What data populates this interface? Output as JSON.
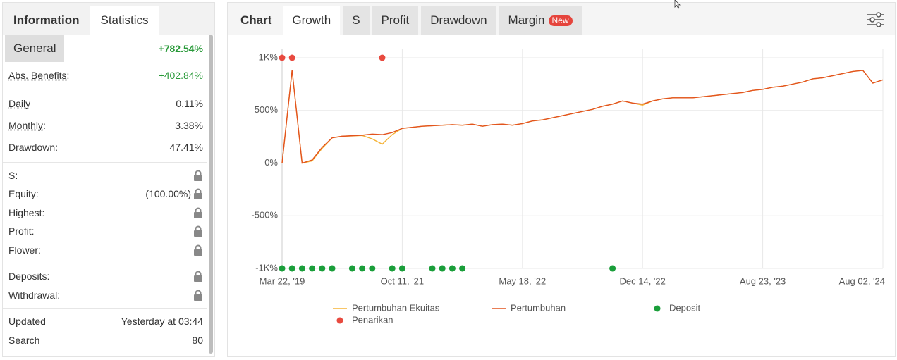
{
  "stats_panel": {
    "tabs": [
      "Information",
      "Statistics"
    ],
    "general": {
      "label": "General",
      "value": "+782.54%"
    },
    "sections": [
      [
        {
          "label": "Abs. Benefits:",
          "value": "+402.84%",
          "underline": true,
          "positive": true
        }
      ],
      [
        {
          "label": "Daily",
          "value": "0.11%",
          "underline": true
        },
        {
          "label": "Monthly:",
          "value": "3.38%",
          "underline": true
        },
        {
          "label": "Drawdown:",
          "value": "47.41%"
        }
      ],
      [
        {
          "label": "S:",
          "locked": true
        },
        {
          "label": "Equity:",
          "value": "(100.00%)",
          "locked": true
        },
        {
          "label": "Highest:",
          "locked": true
        },
        {
          "label": "Profit:",
          "locked": true
        },
        {
          "label": "Flower:",
          "locked": true
        }
      ],
      [
        {
          "label": "Deposits:",
          "locked": true
        },
        {
          "label": "Withdrawal:",
          "locked": true
        }
      ],
      [
        {
          "label": "Updated",
          "value": "Yesterday at 03:44"
        },
        {
          "label": "Search",
          "value": "80"
        }
      ]
    ]
  },
  "chart_panel": {
    "tabs": [
      "Chart",
      "Growth",
      "S",
      "Profit",
      "Drawdown",
      "Margin"
    ],
    "badge": "New",
    "chart_data": {
      "type": "line",
      "categories": [
        "Mar 22, '19",
        null,
        null,
        null,
        null,
        null,
        null,
        null,
        null,
        null,
        null,
        null,
        "Oct 11, '21",
        null,
        null,
        null,
        null,
        null,
        null,
        null,
        null,
        null,
        null,
        null,
        "May 18, '22",
        null,
        null,
        null,
        null,
        null,
        null,
        null,
        null,
        null,
        null,
        null,
        "Dec 14, '22",
        null,
        null,
        null,
        null,
        null,
        null,
        null,
        null,
        null,
        null,
        null,
        "Aug 23, '23",
        null,
        null,
        null,
        null,
        null,
        null,
        null,
        null,
        null,
        null,
        null,
        "Aug 02, '24"
      ],
      "ylim": [
        -1000,
        1000
      ],
      "yticks": [
        {
          "value": 1000,
          "label": "1K%"
        },
        {
          "value": 500,
          "label": "500%"
        },
        {
          "value": 0,
          "label": "0%"
        },
        {
          "value": -500,
          "label": "-500%"
        },
        {
          "value": -1000,
          "label": "-1K%"
        }
      ],
      "grid": true,
      "series": [
        {
          "name": "Pertumbuhan Ekuitas",
          "color": "#f5b335",
          "style": "line",
          "values": [
            0,
            880,
            0,
            20,
            140,
            240,
            255,
            258,
            262,
            230,
            180,
            270,
            330,
            340,
            350,
            355,
            360,
            365,
            360,
            370,
            350,
            365,
            370,
            360,
            375,
            400,
            410,
            430,
            450,
            470,
            490,
            510,
            540,
            560,
            590,
            570,
            550,
            590,
            610,
            620,
            620,
            620,
            630,
            640,
            650,
            660,
            670,
            690,
            700,
            720,
            730,
            750,
            770,
            800,
            810,
            830,
            850,
            870,
            880,
            760,
            790
          ]
        },
        {
          "name": "Pertumbuhan",
          "color": "#e2531f",
          "style": "line",
          "values": [
            0,
            880,
            0,
            30,
            150,
            240,
            255,
            260,
            265,
            275,
            270,
            290,
            330,
            340,
            350,
            355,
            360,
            365,
            360,
            370,
            350,
            365,
            370,
            360,
            375,
            400,
            410,
            430,
            450,
            470,
            490,
            510,
            540,
            560,
            590,
            570,
            560,
            590,
            610,
            620,
            620,
            620,
            630,
            640,
            650,
            660,
            670,
            690,
            700,
            720,
            730,
            750,
            770,
            800,
            810,
            830,
            850,
            870,
            880,
            760,
            790
          ]
        },
        {
          "name": "Deposit",
          "color": "#1a9e3a",
          "style": "dot",
          "values": [
            -1000,
            -1000,
            -1000,
            -1000,
            -1000,
            -1000,
            null,
            -1000,
            -1000,
            -1000,
            null,
            -1000,
            -1000,
            null,
            null,
            -1000,
            -1000,
            -1000,
            -1000,
            null,
            null,
            null,
            null,
            null,
            null,
            null,
            null,
            null,
            null,
            null,
            null,
            null,
            null,
            -1000,
            null,
            null,
            null,
            null,
            null,
            null,
            null,
            null,
            null,
            null,
            null,
            null,
            null,
            null,
            null,
            null,
            null,
            null,
            null,
            null,
            null,
            null,
            null,
            null,
            null,
            null,
            null
          ]
        },
        {
          "name": "Penarikan",
          "color": "#e84a3f",
          "style": "dot",
          "values": [
            1000,
            1000,
            null,
            null,
            null,
            null,
            null,
            null,
            null,
            null,
            1000,
            null,
            null,
            null,
            null,
            null,
            null,
            null,
            null,
            null,
            null,
            null,
            null,
            null,
            null,
            null,
            null,
            null,
            null,
            null,
            null,
            null,
            null,
            null,
            null,
            null,
            null,
            null,
            null,
            null,
            null,
            null,
            null,
            null,
            null,
            null,
            null,
            null,
            null,
            null,
            null,
            null,
            null,
            null,
            null,
            null,
            null,
            null,
            null,
            null,
            null
          ]
        }
      ]
    }
  }
}
